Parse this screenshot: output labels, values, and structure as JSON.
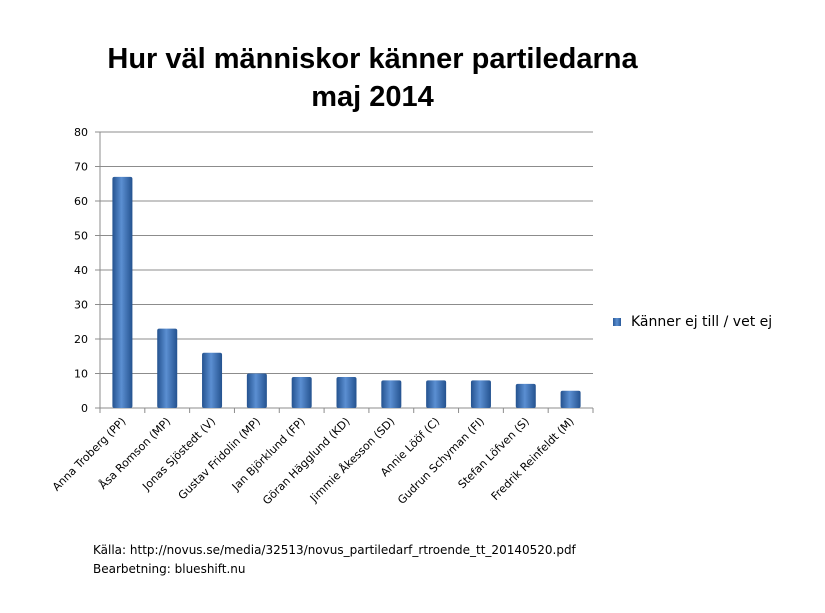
{
  "chart_data": {
    "type": "bar",
    "title_line1": "Hur väl människor känner partiledarna",
    "title_line2": "maj 2014",
    "categories": [
      "Anna Troberg (PP)",
      "Åsa Romson  (MP)",
      "Jonas Sjöstedt (V)",
      "Gustav  Fridolin (MP)",
      "Jan Björklund (FP)",
      "Göran Hägglund  (KD)",
      "Jimmie Åkesson (SD)",
      "Annie Lööf (C)",
      "Gudrun Schyman (FI)",
      "Stefan Löfven (S)",
      "Fredrik Reinfeldt (M)"
    ],
    "series": [
      {
        "name": "Känner ej till / vet ej",
        "values": [
          67,
          23,
          16,
          10,
          9,
          9,
          8,
          8,
          8,
          7,
          5
        ],
        "color": "#3a6db5"
      }
    ],
    "ylim": [
      0,
      80
    ],
    "yticks": [
      "0",
      "10",
      "20",
      "30",
      "40",
      "50",
      "60",
      "70",
      "80"
    ],
    "grid": true,
    "legend": "right"
  },
  "footer": {
    "source": "Källa: http://novus.se/media/32513/novus_partiledarf_rtroende_tt_20140520.pdf",
    "processing": "Bearbetning: blueshift.nu"
  }
}
